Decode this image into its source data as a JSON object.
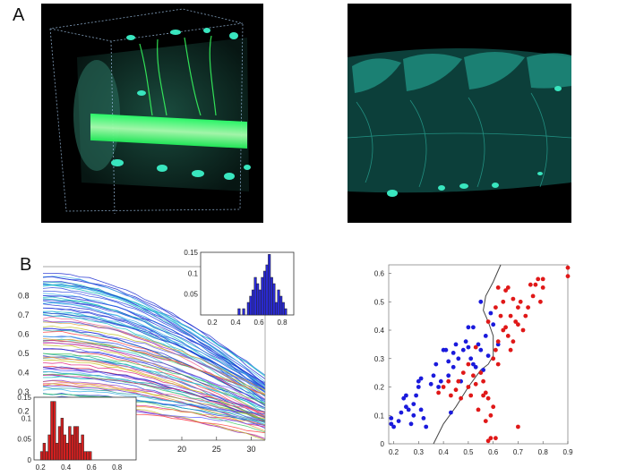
{
  "panels": {
    "a_label": "A",
    "b_label": "B"
  },
  "colors": {
    "fluor": "#39e6bf",
    "fluor_bright": "#5dff9a",
    "blue_series": "#1a1adc",
    "red_series": "#e01818",
    "hist_blue": "#2a2ad8",
    "hist_red": "#d42020"
  },
  "chart_data": [
    {
      "type": "line",
      "id": "decay-curves",
      "x_ticks": [
        "20",
        "25",
        "30"
      ],
      "y_ticks": [
        "0.2",
        "0.3",
        "0.4",
        "0.5",
        "0.6",
        "0.7",
        "0.8"
      ],
      "xlim": [
        0,
        32
      ],
      "ylim": [
        0.05,
        0.95
      ],
      "series_count": 90,
      "y_start_range": [
        0.22,
        0.92
      ],
      "y_end_range": [
        0.1,
        0.42
      ]
    },
    {
      "type": "bar",
      "id": "histogram-blue",
      "x_ticks": [
        "0.2",
        "0.4",
        "0.6",
        "0.8"
      ],
      "y_ticks": [
        "0.05",
        "0.1",
        "0.15"
      ],
      "xlim": [
        0.1,
        0.9
      ],
      "ylim": [
        0,
        0.15
      ],
      "bin_starts": [
        0.42,
        0.46,
        0.5,
        0.52,
        0.54,
        0.56,
        0.58,
        0.6,
        0.62,
        0.64,
        0.66,
        0.68,
        0.7,
        0.72,
        0.74,
        0.76,
        0.78,
        0.8,
        0.82
      ],
      "bin_width": 0.02,
      "values": [
        0.015,
        0.015,
        0.03,
        0.045,
        0.06,
        0.09,
        0.075,
        0.06,
        0.09,
        0.105,
        0.12,
        0.145,
        0.09,
        0.075,
        0.03,
        0.06,
        0.045,
        0.03,
        0.015
      ]
    },
    {
      "type": "bar",
      "id": "histogram-red",
      "x_ticks": [
        "0.2",
        "0.4",
        "0.6",
        "0.8"
      ],
      "y_ticks": [
        "0",
        "0.05",
        "0.1",
        "0.15"
      ],
      "xlim": [
        0.15,
        0.95
      ],
      "ylim": [
        0,
        0.15
      ],
      "bin_starts": [
        0.2,
        0.22,
        0.24,
        0.26,
        0.28,
        0.3,
        0.32,
        0.34,
        0.36,
        0.38,
        0.4,
        0.42,
        0.44,
        0.46,
        0.48,
        0.5,
        0.52,
        0.54,
        0.56,
        0.58
      ],
      "bin_width": 0.02,
      "values": [
        0.02,
        0.04,
        0.02,
        0.06,
        0.14,
        0.14,
        0.04,
        0.08,
        0.1,
        0.06,
        0.04,
        0.08,
        0.06,
        0.08,
        0.08,
        0.04,
        0.06,
        0.02,
        0.02,
        0.02
      ]
    },
    {
      "type": "scatter",
      "id": "scatter-classes",
      "x_ticks": [
        "0.2",
        "0.3",
        "0.4",
        "0.5",
        "0.6",
        "0.7",
        "0.8",
        "0.9"
      ],
      "y_ticks": [
        "0",
        "0.1",
        "0.2",
        "0.3",
        "0.4",
        "0.5",
        "0.6"
      ],
      "xlim": [
        0.18,
        0.9
      ],
      "ylim": [
        0,
        0.63
      ],
      "series": [
        {
          "color_key": "blue_series",
          "points": [
            [
              0.19,
              0.07
            ],
            [
              0.19,
              0.09
            ],
            [
              0.2,
              0.06
            ],
            [
              0.22,
              0.08
            ],
            [
              0.23,
              0.11
            ],
            [
              0.24,
              0.16
            ],
            [
              0.25,
              0.17
            ],
            [
              0.25,
              0.13
            ],
            [
              0.26,
              0.12
            ],
            [
              0.27,
              0.07
            ],
            [
              0.28,
              0.1
            ],
            [
              0.28,
              0.14
            ],
            [
              0.29,
              0.17
            ],
            [
              0.3,
              0.2
            ],
            [
              0.3,
              0.22
            ],
            [
              0.31,
              0.23
            ],
            [
              0.31,
              0.12
            ],
            [
              0.32,
              0.09
            ],
            [
              0.33,
              0.06
            ],
            [
              0.35,
              0.21
            ],
            [
              0.36,
              0.24
            ],
            [
              0.37,
              0.28
            ],
            [
              0.38,
              0.2
            ],
            [
              0.39,
              0.22
            ],
            [
              0.4,
              0.33
            ],
            [
              0.41,
              0.33
            ],
            [
              0.42,
              0.29
            ],
            [
              0.42,
              0.24
            ],
            [
              0.44,
              0.32
            ],
            [
              0.45,
              0.35
            ],
            [
              0.46,
              0.3
            ],
            [
              0.47,
              0.22
            ],
            [
              0.48,
              0.33
            ],
            [
              0.49,
              0.36
            ],
            [
              0.5,
              0.34
            ],
            [
              0.5,
              0.41
            ],
            [
              0.51,
              0.3
            ],
            [
              0.52,
              0.28
            ],
            [
              0.53,
              0.27
            ],
            [
              0.54,
              0.35
            ],
            [
              0.55,
              0.33
            ],
            [
              0.56,
              0.26
            ],
            [
              0.57,
              0.38
            ],
            [
              0.58,
              0.31
            ],
            [
              0.52,
              0.41
            ],
            [
              0.55,
              0.5
            ],
            [
              0.6,
              0.42
            ],
            [
              0.62,
              0.35
            ],
            [
              0.59,
              0.46
            ],
            [
              0.43,
              0.11
            ],
            [
              0.44,
              0.27
            ]
          ]
        },
        {
          "color_key": "red_series",
          "points": [
            [
              0.38,
              0.18
            ],
            [
              0.4,
              0.2
            ],
            [
              0.42,
              0.22
            ],
            [
              0.43,
              0.17
            ],
            [
              0.45,
              0.19
            ],
            [
              0.46,
              0.22
            ],
            [
              0.47,
              0.16
            ],
            [
              0.48,
              0.25
            ],
            [
              0.5,
              0.28
            ],
            [
              0.5,
              0.2
            ],
            [
              0.51,
              0.17
            ],
            [
              0.52,
              0.24
            ],
            [
              0.53,
              0.21
            ],
            [
              0.54,
              0.12
            ],
            [
              0.55,
              0.25
            ],
            [
              0.56,
              0.22
            ],
            [
              0.57,
              0.18
            ],
            [
              0.57,
              0.08
            ],
            [
              0.58,
              0.16
            ],
            [
              0.59,
              0.1
            ],
            [
              0.6,
              0.13
            ],
            [
              0.6,
              0.3
            ],
            [
              0.61,
              0.33
            ],
            [
              0.62,
              0.28
            ],
            [
              0.62,
              0.36
            ],
            [
              0.63,
              0.45
            ],
            [
              0.64,
              0.4
            ],
            [
              0.64,
              0.5
            ],
            [
              0.65,
              0.41
            ],
            [
              0.66,
              0.38
            ],
            [
              0.67,
              0.45
            ],
            [
              0.67,
              0.33
            ],
            [
              0.68,
              0.36
            ],
            [
              0.69,
              0.43
            ],
            [
              0.7,
              0.48
            ],
            [
              0.7,
              0.42
            ],
            [
              0.71,
              0.5
            ],
            [
              0.72,
              0.4
            ],
            [
              0.73,
              0.45
            ],
            [
              0.74,
              0.48
            ],
            [
              0.75,
              0.56
            ],
            [
              0.76,
              0.52
            ],
            [
              0.77,
              0.56
            ],
            [
              0.78,
              0.58
            ],
            [
              0.79,
              0.5
            ],
            [
              0.8,
              0.58
            ],
            [
              0.8,
              0.55
            ],
            [
              0.62,
              0.55
            ],
            [
              0.65,
              0.54
            ],
            [
              0.7,
              0.06
            ],
            [
              0.58,
              0.01
            ],
            [
              0.59,
              0.02
            ],
            [
              0.61,
              0.02
            ],
            [
              0.9,
              0.59
            ],
            [
              0.9,
              0.62
            ],
            [
              0.53,
              0.34
            ],
            [
              0.56,
              0.17
            ],
            [
              0.58,
              0.43
            ],
            [
              0.61,
              0.48
            ],
            [
              0.66,
              0.55
            ],
            [
              0.68,
              0.51
            ]
          ]
        }
      ],
      "boundary": [
        [
          0.36,
          0
        ],
        [
          0.4,
          0.07
        ],
        [
          0.45,
          0.13
        ],
        [
          0.5,
          0.2
        ],
        [
          0.55,
          0.26
        ],
        [
          0.58,
          0.28
        ],
        [
          0.6,
          0.31
        ],
        [
          0.6,
          0.38
        ],
        [
          0.58,
          0.43
        ],
        [
          0.56,
          0.47
        ],
        [
          0.57,
          0.52
        ],
        [
          0.6,
          0.57
        ],
        [
          0.63,
          0.63
        ]
      ]
    }
  ]
}
